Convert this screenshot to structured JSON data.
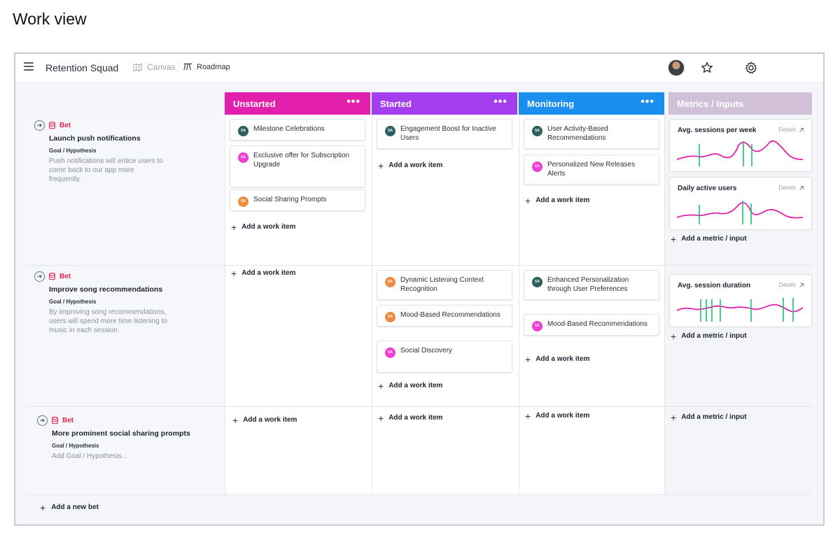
{
  "page": {
    "heading": "Work view"
  },
  "topbar": {
    "title": "Retention Squad",
    "nav": {
      "canvas": "Canvas",
      "roadmap": "Roadmap"
    }
  },
  "columns": {
    "unstarted": "Unstarted",
    "started": "Started",
    "monitoring": "Monitoring",
    "metrics": "Metrics / Inputs",
    "menu": "•••"
  },
  "labels": {
    "bet": "Bet",
    "goal": "Goal / Hypothesis",
    "add_work_item": "Add a work item",
    "add_metric": "Add a metric / input",
    "add_bet": "Add a new bet",
    "details": "Details",
    "avatar_initials": "SA"
  },
  "bets": [
    {
      "title": "Launch push notifications",
      "goal": "Push notifications will entice users to come back to our app more frequently.",
      "unstarted": [
        "Milestone Celebrations",
        "Exclusive offer for Subscription Upgrade",
        "Social Sharing Prompts"
      ],
      "started": [
        "Engagement Boost for Inactive Users"
      ],
      "monitoring": [
        "User Activity-Based Recommendations",
        "Personalized New Releases Alerts"
      ],
      "metrics": [
        "Avg. sessions per week",
        "Daily active users"
      ]
    },
    {
      "title": "Improve song recommendations",
      "goal": "By improving song recommendations, users will spend more time listening to music in each session.",
      "unstarted": [],
      "started": [
        "Dynamic Listening Context Recognition",
        "Mood-Based Recommendations",
        "Social Discovery"
      ],
      "monitoring": [
        "Enhanced Personalization through User Preferences",
        "Mood-Based Recommendations"
      ],
      "metrics": [
        "Avg. session duration"
      ]
    },
    {
      "title": "More prominent social sharing prompts",
      "goal": "Add Goal / Hypothesis...",
      "unstarted": [],
      "started": [],
      "monitoring": [],
      "metrics": []
    }
  ],
  "colors": {
    "unstarted": "#e31fad",
    "started": "#a43ff0",
    "monitoring": "#1a8fef",
    "metrics": "#d2c1d6",
    "bet_red": "#e0244f",
    "sparkline": "#e31fad",
    "marker": "#19c36a"
  },
  "icons": [
    "menu-icon",
    "map-icon",
    "roadmap-icon",
    "star-icon",
    "gear-icon",
    "bet-arrow-icon",
    "database-icon",
    "plus-icon",
    "external-arrow-icon"
  ]
}
